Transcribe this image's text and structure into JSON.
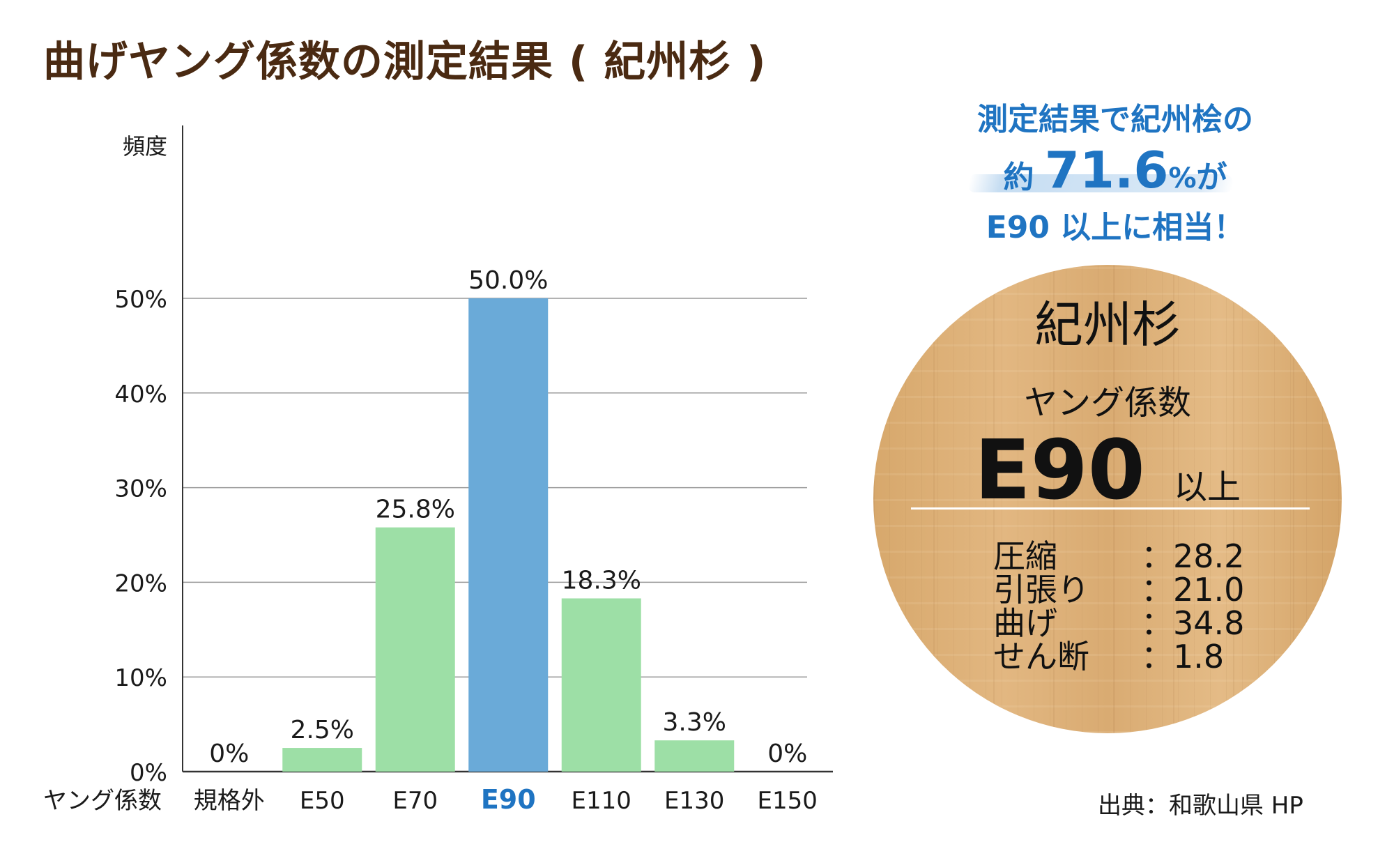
{
  "title": "曲げヤング係数の測定結果 ( 紀州杉 )",
  "chart_data": {
    "type": "bar",
    "title": "曲げヤング係数の測定結果 ( 紀州杉 )",
    "ylabel": "頻度",
    "xlabel": "ヤング係数",
    "categories": [
      "規格外",
      "E50",
      "E70",
      "E90",
      "E110",
      "E130",
      "E150"
    ],
    "values": [
      0,
      2.5,
      25.8,
      50.0,
      18.3,
      3.3,
      0
    ],
    "value_labels": [
      "0%",
      "2.5%",
      "25.8%",
      "50.0%",
      "18.3%",
      "3.3%",
      "0%"
    ],
    "highlight_index": 3,
    "ylim": [
      0,
      50
    ],
    "y_ticks": [
      0,
      10,
      20,
      30,
      40,
      50
    ],
    "y_tick_labels": [
      "0%",
      "10%",
      "20%",
      "30%",
      "40%",
      "50%"
    ],
    "grid": true,
    "colors": {
      "bar": "#9ddfa6",
      "highlight": "#6aaad8",
      "highlight_text": "#1f74c2",
      "grid": "#999999",
      "axis": "#333333"
    }
  },
  "callout": {
    "line1": "測定結果で紀州桧の",
    "prefix": "約",
    "value": "71.6",
    "unit": "%",
    "suffix": "が",
    "line3": "E90 以上に相当！"
  },
  "disc": {
    "name": "紀州杉",
    "label": "ヤング係数",
    "grade": "E90",
    "grade_suffix": "以上",
    "specs": [
      {
        "key": "圧縮",
        "value": "：28.2"
      },
      {
        "key": "引張り",
        "value": "：21.0"
      },
      {
        "key": "曲げ",
        "value": "：34.8"
      },
      {
        "key": "せん断",
        "value": "：1.8"
      }
    ]
  },
  "source": "出典：和歌山県 HP"
}
